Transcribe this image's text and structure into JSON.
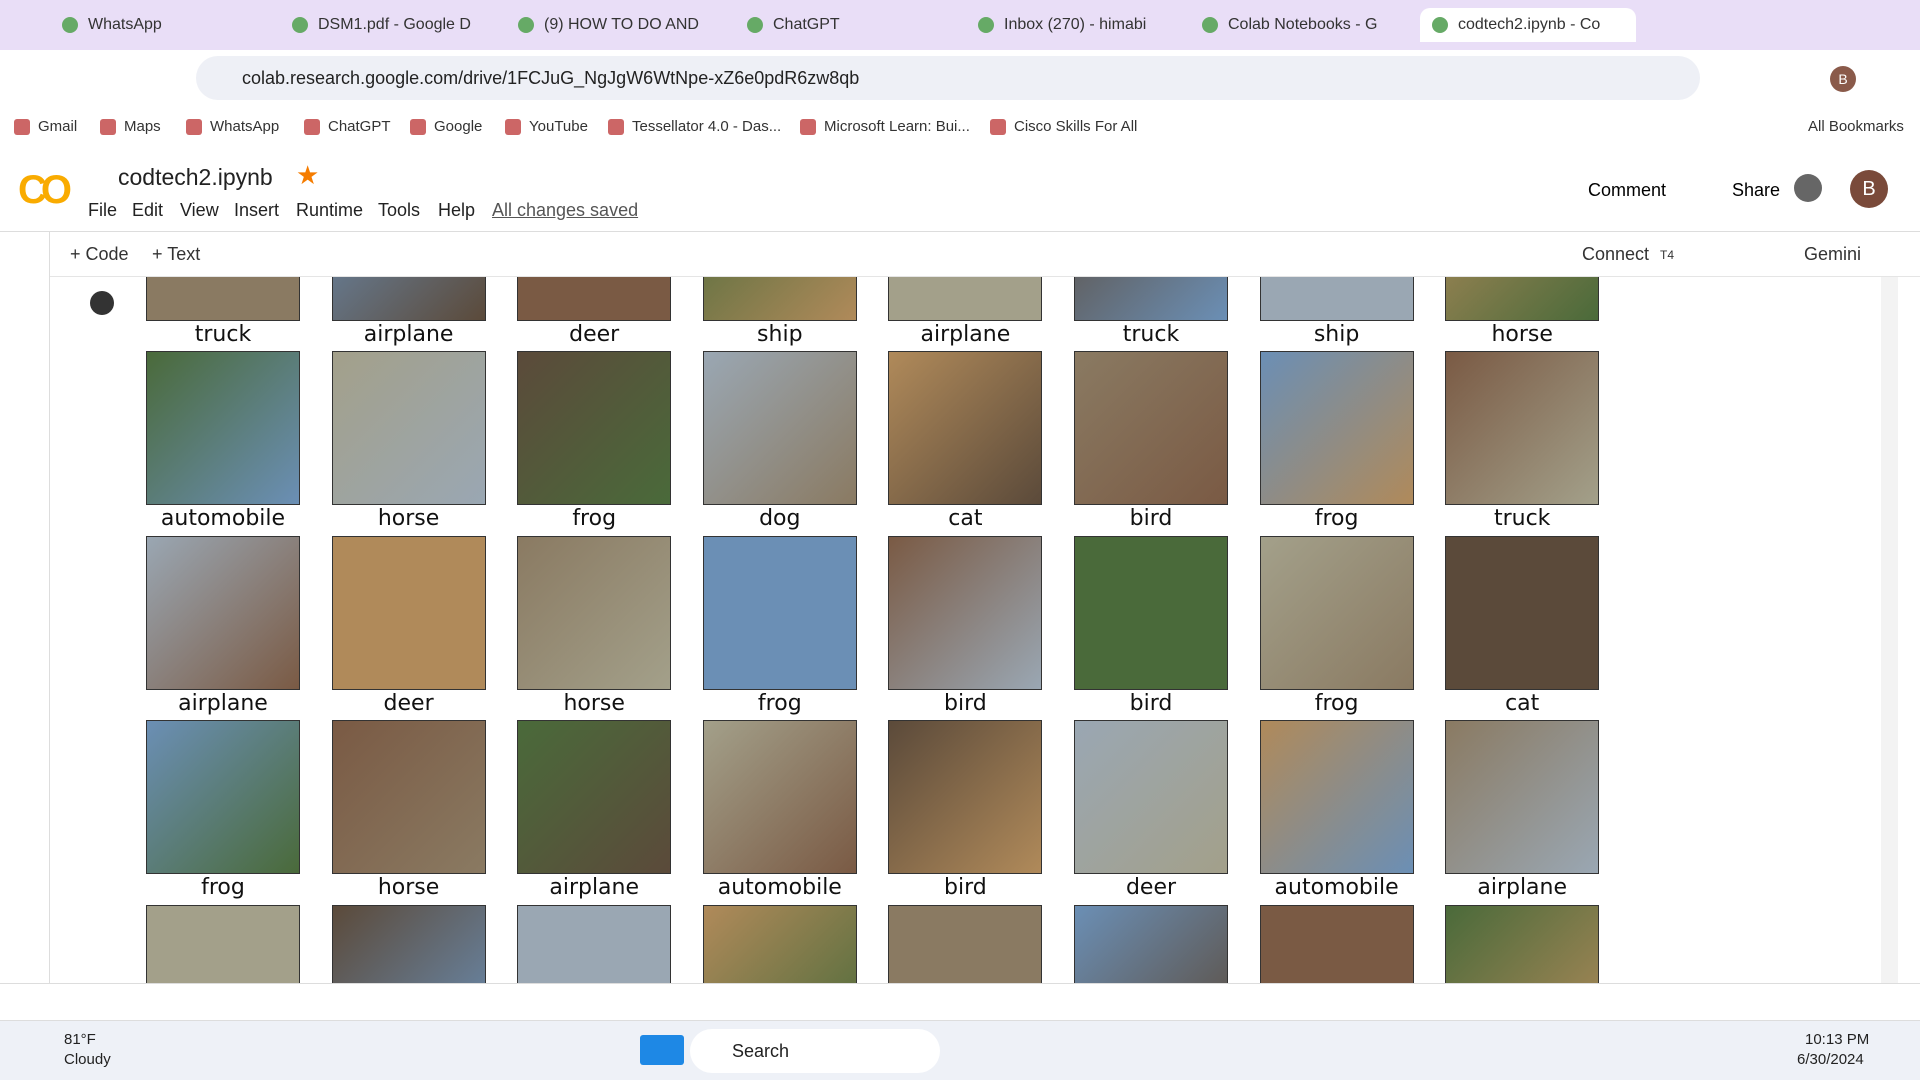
{
  "browser": {
    "tabs": [
      "WhatsApp",
      "DSM1.pdf - Google D",
      "(9) HOW TO DO AND",
      "ChatGPT",
      "Inbox (270) - himabi",
      "Colab Notebooks - G",
      "codtech2.ipynb - Co"
    ],
    "url": "colab.research.google.com/drive/1FCJuG_NgJgW6WtNpe-xZ6e0pdR6zw8qb",
    "bookmarks": [
      "Gmail",
      "Maps",
      "WhatsApp",
      "ChatGPT",
      "Google",
      "YouTube",
      "Tessellator 4.0 - Das...",
      "Microsoft Learn: Bui...",
      "Cisco Skills For All"
    ],
    "all_bookmarks": "All Bookmarks",
    "profile": "B"
  },
  "colab": {
    "title": "codtech2.ipynb",
    "menu": [
      "File",
      "Edit",
      "View",
      "Insert",
      "Runtime",
      "Tools",
      "Help"
    ],
    "saved": "All changes saved",
    "comment": "Comment",
    "share": "Share",
    "avatar": "B",
    "add_code": "+ Code",
    "add_text": "+ Text",
    "connect": "Connect",
    "runtime": "T4",
    "gemini": "Gemini"
  },
  "output": {
    "rows": [
      [
        "truck",
        "airplane",
        "deer",
        "ship",
        "airplane",
        "truck",
        "ship",
        "horse"
      ],
      [
        "automobile",
        "horse",
        "frog",
        "dog",
        "cat",
        "bird",
        "frog",
        "truck"
      ],
      [
        "airplane",
        "deer",
        "horse",
        "frog",
        "bird",
        "bird",
        "frog",
        "cat"
      ],
      [
        "frog",
        "horse",
        "airplane",
        "automobile",
        "bird",
        "deer",
        "automobile",
        "airplane"
      ]
    ]
  },
  "taskbar": {
    "temp": "81°F",
    "weather": "Cloudy",
    "search": "Search",
    "time": "10:13 PM",
    "date": "6/30/2024"
  }
}
